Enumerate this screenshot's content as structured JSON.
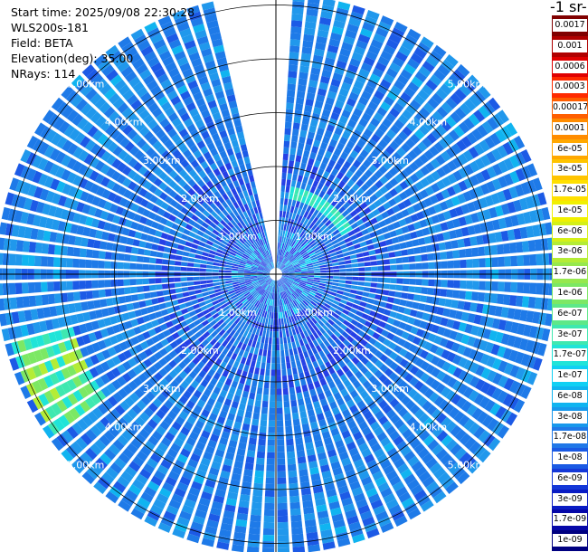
{
  "header": {
    "start_time": "Start time: 2025/09/08 22:30:28",
    "instrument": "WLS200s-181",
    "field": "Field: BETA",
    "elevation": "Elevation(deg): 35.00",
    "nrays": "NRays: 114"
  },
  "colorbar": {
    "unit_label": "-1 sr-",
    "ticks": [
      "0.0017",
      "0.001",
      "0.0006",
      "0.0003",
      "0.00017",
      "0.0001",
      "6e-05",
      "3e-05",
      "1.7e-05",
      "1e-05",
      "6e-06",
      "3e-06",
      "1.7e-06",
      "1e-06",
      "6e-07",
      "3e-07",
      "1.7e-07",
      "1e-07",
      "6e-08",
      "3e-08",
      "1.7e-08",
      "1e-08",
      "6e-09",
      "3e-09",
      "1.7e-09",
      "1e-09"
    ],
    "colors": [
      "#800000",
      "#b00000",
      "#e00000",
      "#ff2a00",
      "#ff5e00",
      "#ff8c00",
      "#ffa800",
      "#ffc400",
      "#ffe000",
      "#f0f000",
      "#d4f018",
      "#b4ec36",
      "#96e84e",
      "#7ce864",
      "#5ee888",
      "#3ee8b0",
      "#20e4d8",
      "#10d0f4",
      "#10b4f0",
      "#1898ec",
      "#2078e8",
      "#1a5ae4",
      "#1438d8",
      "#0a1cc4",
      "#0608a8",
      "#000080"
    ]
  },
  "chart_data": {
    "type": "heatmap",
    "projection": "polar",
    "title": "",
    "field": "BETA",
    "elevation_deg": 35.0,
    "n_rays": 114,
    "range_rings_km": [
      1,
      2,
      3,
      4,
      5
    ],
    "range_ring_labels": [
      "1.00km",
      "2.00km",
      "3.00km",
      "4.00km",
      "5.00km"
    ],
    "max_range_km": 5.2,
    "scale": "log",
    "value_range": [
      1e-09,
      0.0017
    ],
    "missing_sector_deg": [
      -12,
      2
    ],
    "dominant_value": "≈1e-08 to 6e-08",
    "notes": "Weak returns (mostly 1e-08–6e-08) across the scan; enhanced backscatter ring near 1.5 km to the NE and a local maximum (~1e-07–3e-07) at about 4–5 km toward the WSW."
  }
}
